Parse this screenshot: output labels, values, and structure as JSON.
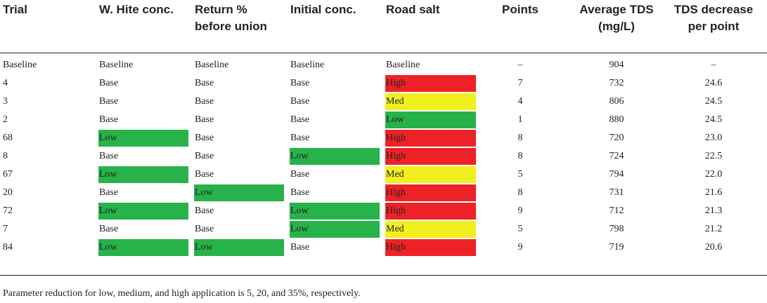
{
  "table": {
    "columns": [
      {
        "key": "trial",
        "lines": [
          "Trial"
        ]
      },
      {
        "key": "whitе",
        "lines": [
          "W. Hite conc."
        ]
      },
      {
        "key": "ret",
        "lines": [
          "Return %",
          "before union"
        ]
      },
      {
        "key": "init",
        "lines": [
          "Initial conc."
        ]
      },
      {
        "key": "salt",
        "lines": [
          "Road salt"
        ]
      },
      {
        "key": "points",
        "lines": [
          "Points"
        ]
      },
      {
        "key": "tds",
        "lines": [
          "Average TDS",
          "(mg/L)"
        ]
      },
      {
        "key": "dec",
        "lines": [
          "TDS decrease",
          "per point"
        ]
      }
    ],
    "rows": [
      [
        "Baseline",
        "Baseline",
        "Baseline",
        "Baseline",
        "Baseline",
        "–",
        "904",
        "–"
      ],
      [
        "4",
        "Base",
        "Base",
        "Base",
        "High",
        "7",
        "732",
        "24.6"
      ],
      [
        "3",
        "Base",
        "Base",
        "Base",
        "Med",
        "4",
        "806",
        "24.5"
      ],
      [
        "2",
        "Base",
        "Base",
        "Base",
        "Low",
        "1",
        "880",
        "24.5"
      ],
      [
        "68",
        "Low",
        "Base",
        "Base",
        "High",
        "8",
        "720",
        "23.0"
      ],
      [
        "8",
        "Base",
        "Base",
        "Low",
        "High",
        "8",
        "724",
        "22.5"
      ],
      [
        "67",
        "Low",
        "Base",
        "Base",
        "Med",
        "5",
        "794",
        "22.0"
      ],
      [
        "20",
        "Base",
        "Low",
        "Base",
        "High",
        "8",
        "731",
        "21.6"
      ],
      [
        "72",
        "Low",
        "Base",
        "Low",
        "High",
        "9",
        "712",
        "21.3"
      ],
      [
        "7",
        "Base",
        "Base",
        "Low",
        "Med",
        "5",
        "798",
        "21.2"
      ],
      [
        "84",
        "Low",
        "Low",
        "Base",
        "High",
        "9",
        "719",
        "20.6"
      ]
    ]
  },
  "level_colors": {
    "Low": "#27b24a",
    "Med": "#f2ef1f",
    "High": "#ee2226"
  },
  "footnote": "Parameter reduction for low, medium, and high application is 5, 20, and 35%, respectively."
}
